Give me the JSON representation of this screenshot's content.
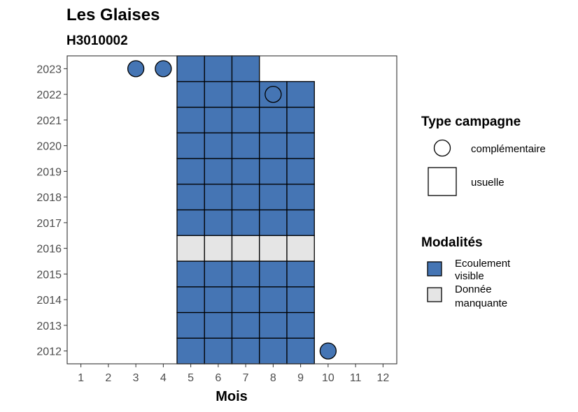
{
  "chart_data": {
    "type": "heatmap",
    "title": "Les Glaises",
    "subtitle": "H3010002",
    "xlabel": "Mois",
    "ylabel": "",
    "x_ticks": [
      "1",
      "2",
      "3",
      "4",
      "5",
      "6",
      "7",
      "8",
      "9",
      "10",
      "11",
      "12"
    ],
    "y_ticks": [
      "2012",
      "2013",
      "2014",
      "2015",
      "2016",
      "2017",
      "2018",
      "2019",
      "2020",
      "2021",
      "2022",
      "2023"
    ],
    "xlim": [
      0.5,
      12.5
    ],
    "ylim": [
      2011.5,
      2023.5
    ],
    "colors": {
      "Ecoulement visible": "#4575b4",
      "Donnée manquante": "#e5e5e5"
    },
    "usuelle": [
      {
        "year": 2012,
        "months": [
          5,
          6,
          7,
          8,
          9
        ],
        "modalite": "Ecoulement visible"
      },
      {
        "year": 2013,
        "months": [
          5,
          6,
          7,
          8,
          9
        ],
        "modalite": "Ecoulement visible"
      },
      {
        "year": 2014,
        "months": [
          5,
          6,
          7,
          8,
          9
        ],
        "modalite": "Ecoulement visible"
      },
      {
        "year": 2015,
        "months": [
          5,
          6,
          7,
          8,
          9
        ],
        "modalite": "Ecoulement visible"
      },
      {
        "year": 2016,
        "months": [
          5,
          6,
          7,
          8,
          9
        ],
        "modalite": "Donnée manquante"
      },
      {
        "year": 2017,
        "months": [
          5,
          6,
          7,
          8,
          9
        ],
        "modalite": "Ecoulement visible"
      },
      {
        "year": 2018,
        "months": [
          5,
          6,
          7,
          8,
          9
        ],
        "modalite": "Ecoulement visible"
      },
      {
        "year": 2019,
        "months": [
          5,
          6,
          7,
          8,
          9
        ],
        "modalite": "Ecoulement visible"
      },
      {
        "year": 2020,
        "months": [
          5,
          6,
          7,
          8,
          9
        ],
        "modalite": "Ecoulement visible"
      },
      {
        "year": 2021,
        "months": [
          5,
          6,
          7,
          8,
          9
        ],
        "modalite": "Ecoulement visible"
      },
      {
        "year": 2022,
        "months": [
          5,
          6,
          7,
          8,
          9
        ],
        "modalite": "Ecoulement visible"
      },
      {
        "year": 2023,
        "months": [
          5,
          6,
          7
        ],
        "modalite": "Ecoulement visible"
      }
    ],
    "complementaire": [
      {
        "year": 2023,
        "month": 3,
        "modalite": "Ecoulement visible"
      },
      {
        "year": 2023,
        "month": 4,
        "modalite": "Ecoulement visible"
      },
      {
        "year": 2022,
        "month": 8,
        "modalite": "Ecoulement visible"
      },
      {
        "year": 2012,
        "month": 10,
        "modalite": "Ecoulement visible"
      }
    ],
    "legend_placement": "right",
    "legend": {
      "type_title": "Type campagne",
      "type_items": [
        "complémentaire",
        "usuelle"
      ],
      "modalite_title": "Modalités",
      "modalite_items": [
        {
          "line1": "Ecoulement",
          "line2": "visible"
        },
        {
          "line1": "Donnée",
          "line2": "manquante"
        }
      ]
    },
    "grid": false
  }
}
